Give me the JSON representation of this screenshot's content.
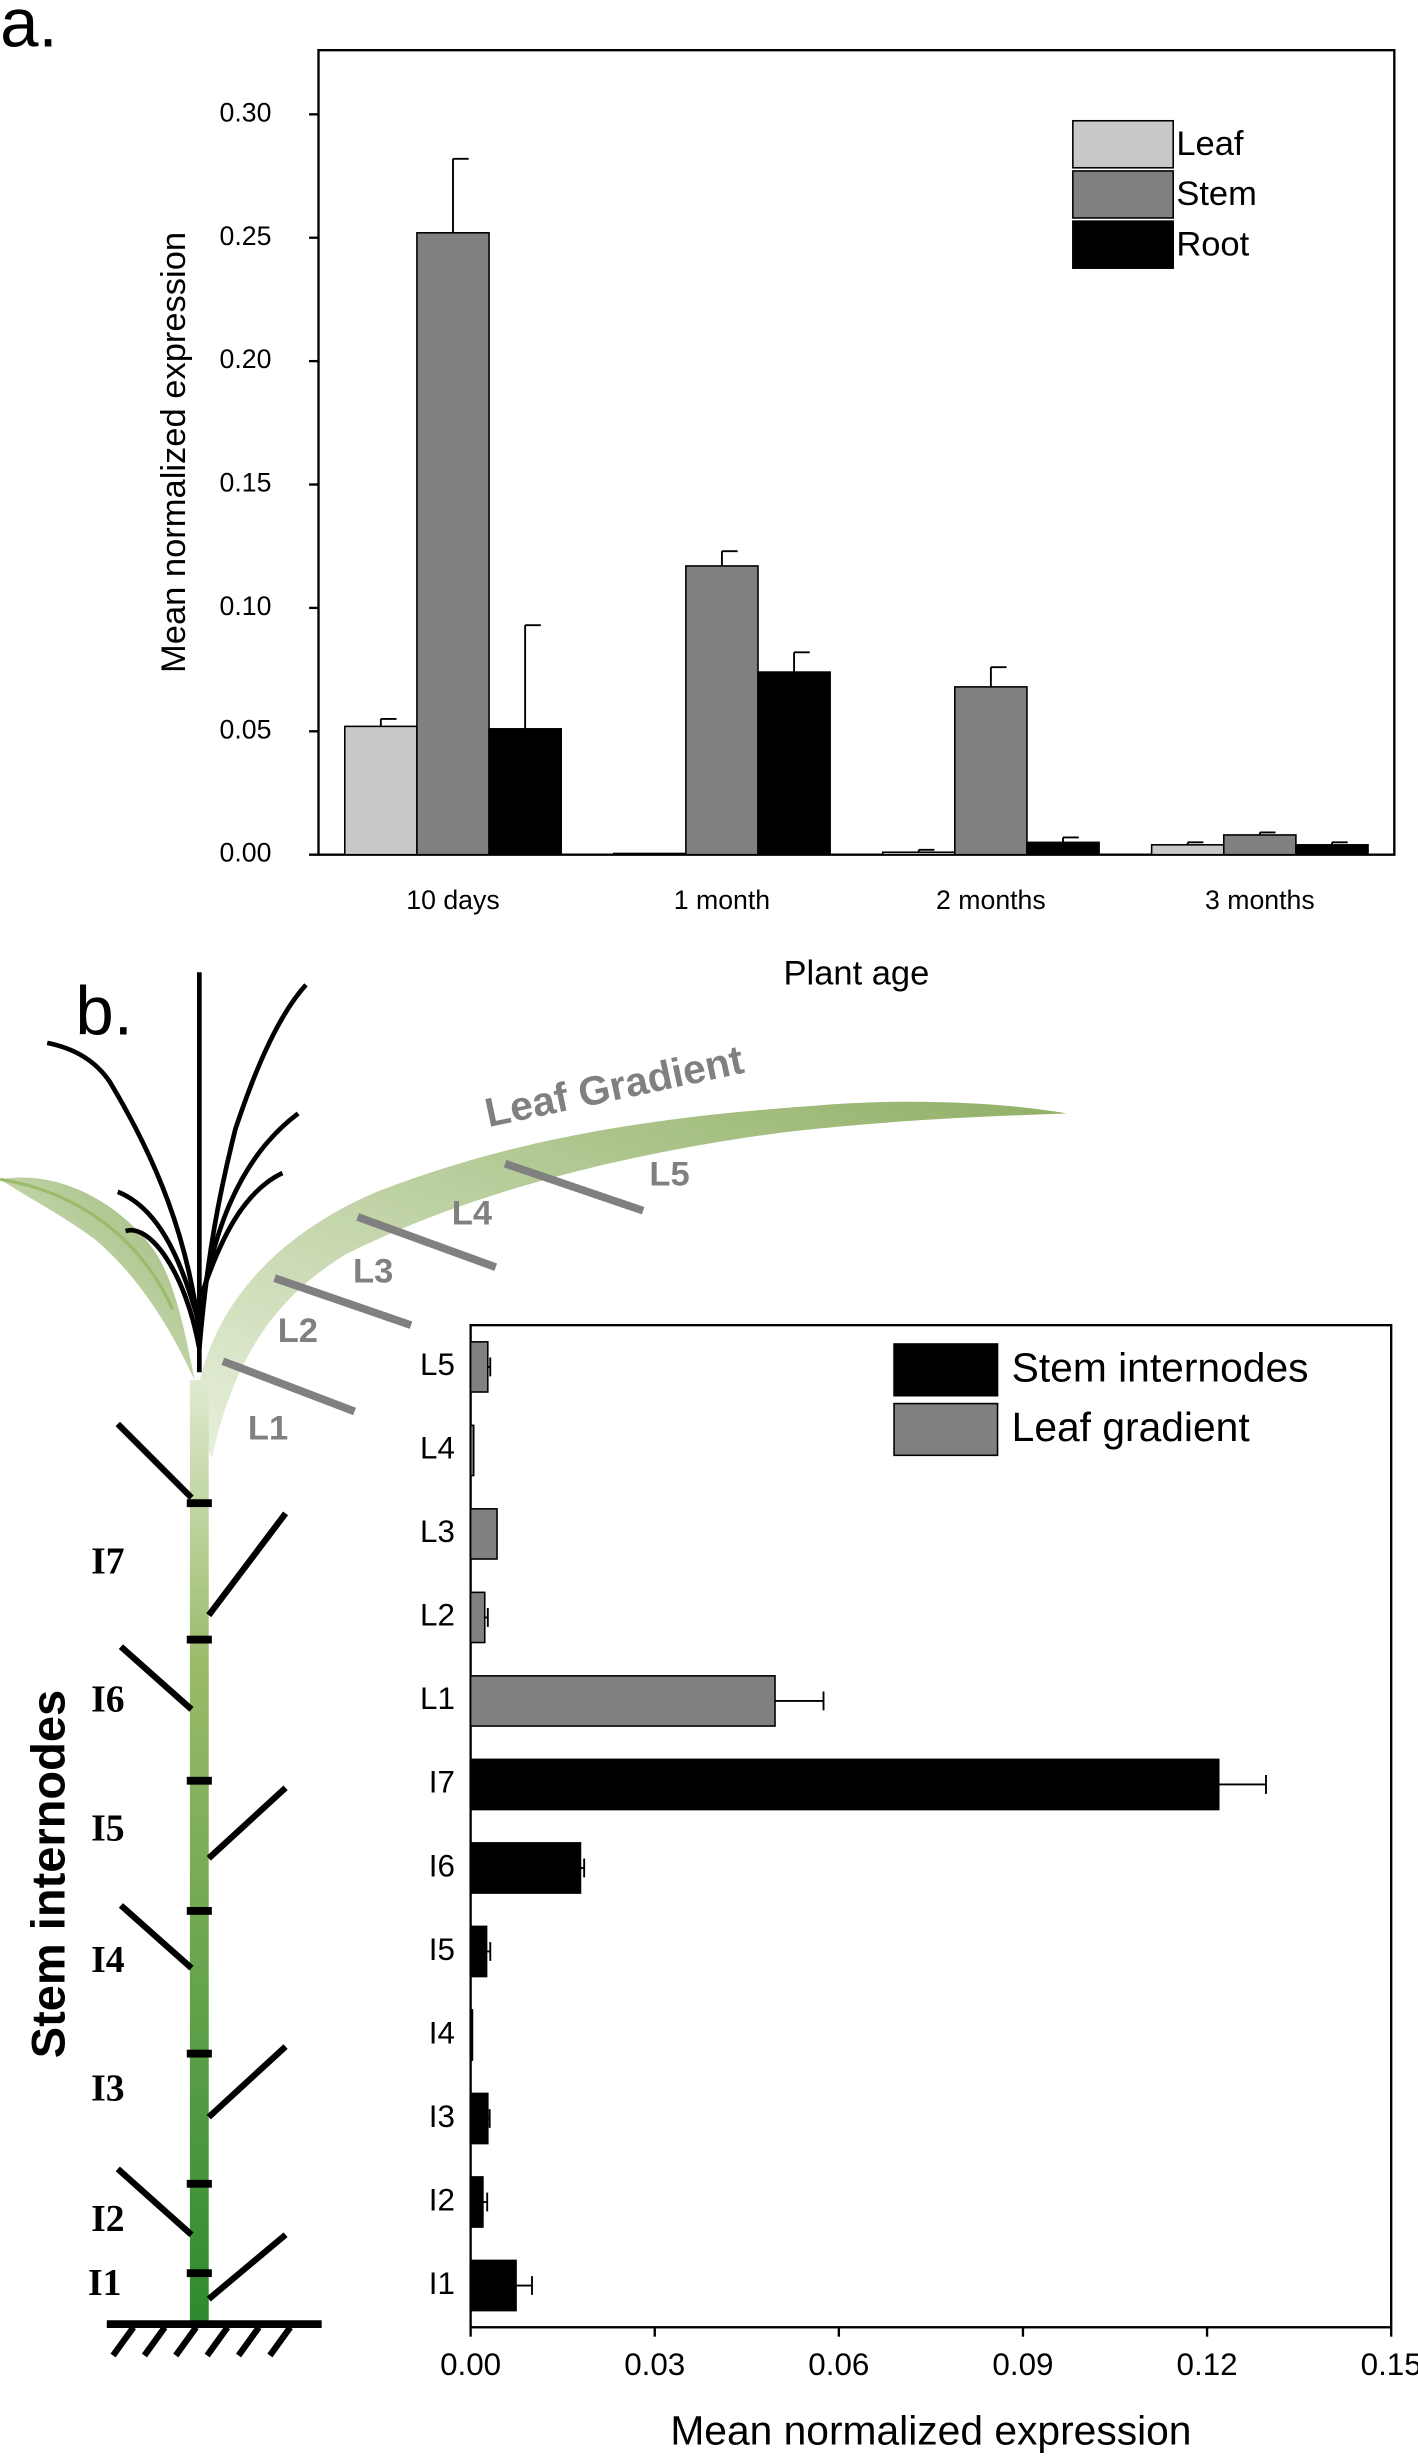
{
  "figure_labels": [
    "a.",
    "b."
  ],
  "chart_data": [
    {
      "type": "bar",
      "xlabel": "Plant age",
      "ylabel": "Mean normalized expression",
      "categories": [
        "10 days",
        "1 month",
        "2 months",
        "3 months"
      ],
      "series": [
        {
          "name": "Leaf",
          "color": "#c8c8c8",
          "values": [
            0.052,
            0.0005,
            0.001,
            0.004
          ],
          "errors": [
            0.003,
            0,
            0.001,
            0.001
          ]
        },
        {
          "name": "Stem",
          "color": "#808080",
          "values": [
            0.252,
            0.117,
            0.068,
            0.008
          ],
          "errors": [
            0.03,
            0.006,
            0.008,
            0.001
          ]
        },
        {
          "name": "Root",
          "color": "#000000",
          "values": [
            0.051,
            0.074,
            0.005,
            0.004
          ],
          "errors": [
            0.042,
            0.008,
            0.002,
            0.001
          ]
        }
      ],
      "ylim": [
        0,
        0.326
      ],
      "yticks": [
        {
          "value": 0,
          "label": "0.00"
        },
        0.05,
        {
          "value": 0.1,
          "label": "0.10"
        },
        0.15,
        {
          "value": 0.2,
          "label": "0.20"
        },
        0.25,
        {
          "value": 0.3,
          "label": "0.30"
        }
      ],
      "legend": "top-right"
    },
    {
      "type": "barh",
      "xlabel": "Mean normalized expression",
      "categories": [
        "I1",
        "I2",
        "I3",
        "I4",
        "I5",
        "I6",
        "I7",
        "L1",
        "L2",
        "L3",
        "L4",
        "L5"
      ],
      "series": [
        {
          "name": "Stem internodes",
          "color": "#000000",
          "values": [
            0.0074,
            0.002,
            0.0028,
            0.0003,
            0.0026,
            0.0179,
            0.1219,
            null,
            null,
            null,
            null,
            null
          ],
          "errors": [
            0.0026,
            0.0007,
            0.0003,
            0,
            0.0006,
            0.0006,
            0.0077,
            null,
            null,
            null,
            null,
            null
          ]
        },
        {
          "name": "Leaf gradient",
          "color": "#808080",
          "values": [
            null,
            null,
            null,
            null,
            null,
            null,
            null,
            0.0496,
            0.0023,
            0.0043,
            0.0005,
            0.0028
          ],
          "errors": [
            null,
            null,
            null,
            null,
            null,
            null,
            null,
            0.0079,
            0.0005,
            0,
            0,
            0.0004
          ]
        }
      ],
      "xlim": [
        0,
        0.15
      ],
      "xticks": [
        {
          "value": 0,
          "label": "0.00"
        },
        0.03,
        0.06,
        0.09,
        0.12,
        0.15
      ],
      "legend": "top-right"
    }
  ],
  "diagram": {
    "title": "Leaf Gradient",
    "leaf_sections": [
      "L1",
      "L2",
      "L3",
      "L4",
      "L5"
    ],
    "internodes": [
      "I1",
      "I2",
      "I3",
      "I4",
      "I5",
      "I6",
      "I7"
    ],
    "stem_label": "Stem internodes"
  }
}
